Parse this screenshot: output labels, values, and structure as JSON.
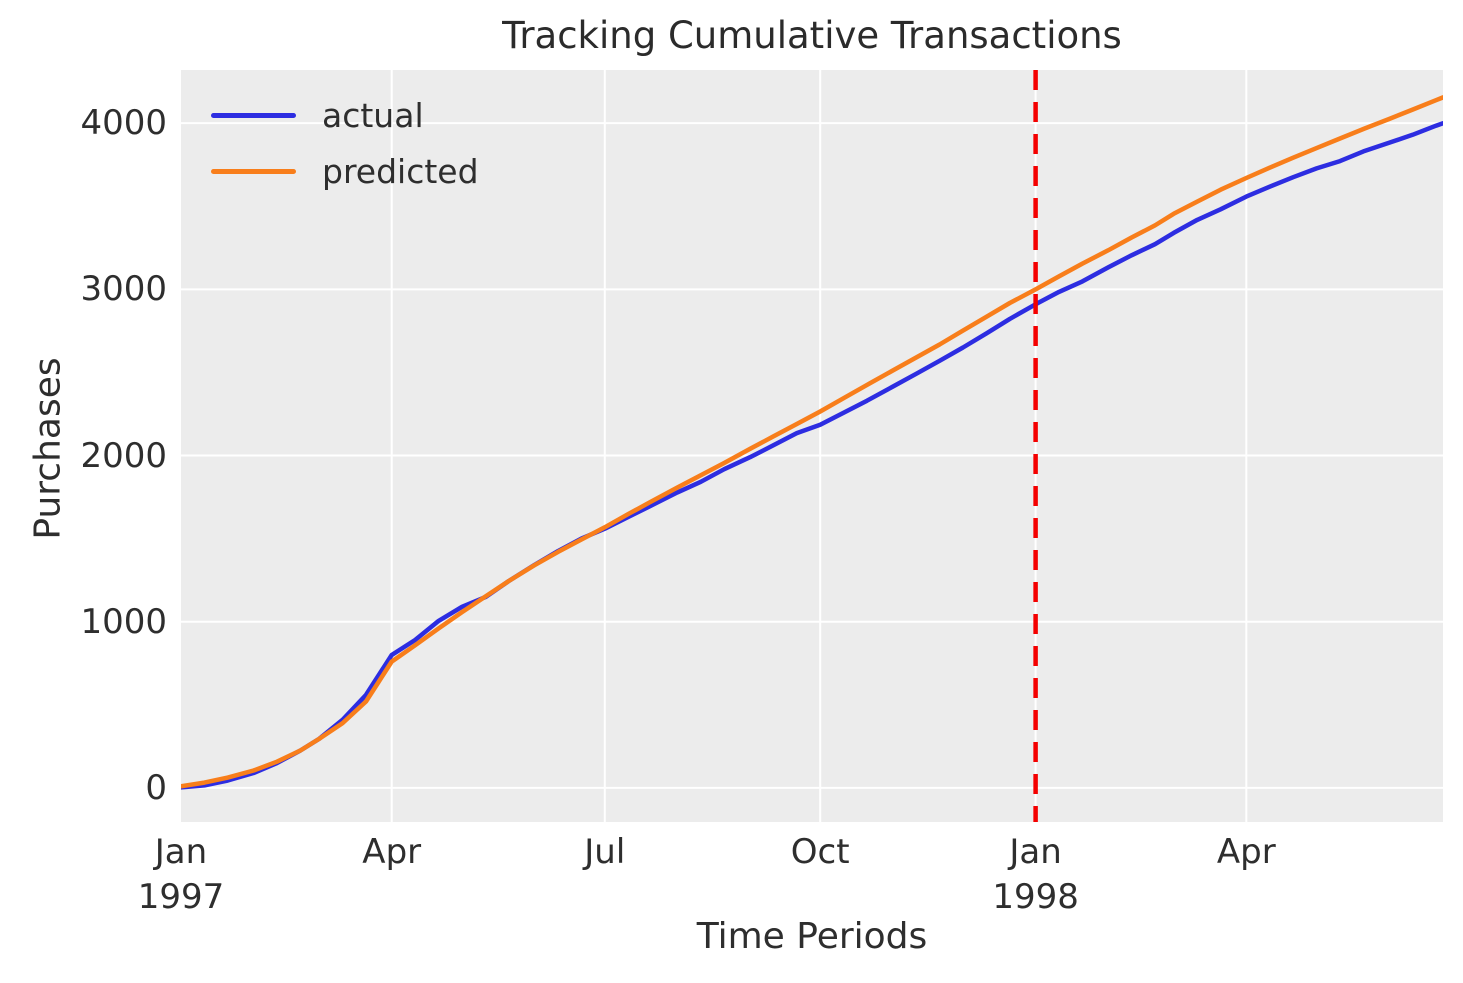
{
  "title": "Tracking Cumulative Transactions",
  "axes": {
    "x_label": "Time Periods",
    "y_label": "Purchases"
  },
  "colors": {
    "actual": "#2d2de1",
    "predicted": "#f87e1b",
    "cutoff_line": "#f40000",
    "plot_background": "#ececec",
    "gridline": "#ffffff",
    "text": "#2e2e2e"
  },
  "chart_data": {
    "type": "line",
    "title": "Tracking Cumulative Transactions",
    "xlabel": "Time Periods",
    "ylabel": "Purchases",
    "grid": true,
    "legend_position": "upper left",
    "x_range": [
      "1997-01-01",
      "1998-06-24"
    ],
    "ylim": [
      -205,
      4320
    ],
    "y_ticks": [
      0,
      1000,
      2000,
      3000,
      4000
    ],
    "x_ticks": [
      {
        "date": "1997-01-01",
        "label": "Jan",
        "year": "1997"
      },
      {
        "date": "1997-04-01",
        "label": "Apr",
        "year": ""
      },
      {
        "date": "1997-07-01",
        "label": "Jul",
        "year": ""
      },
      {
        "date": "1997-10-01",
        "label": "Oct",
        "year": ""
      },
      {
        "date": "1998-01-01",
        "label": "Jan",
        "year": "1998"
      },
      {
        "date": "1998-04-01",
        "label": "Apr",
        "year": ""
      }
    ],
    "vline": {
      "date": "1998-01-01",
      "color": "#f40000",
      "style": "dashed"
    },
    "x": [
      "1997-01-01",
      "1997-01-11",
      "1997-01-21",
      "1997-02-01",
      "1997-02-11",
      "1997-02-21",
      "1997-03-01",
      "1997-03-11",
      "1997-03-21",
      "1997-04-01",
      "1997-04-11",
      "1997-04-21",
      "1997-05-01",
      "1997-05-11",
      "1997-05-21",
      "1997-06-01",
      "1997-06-11",
      "1997-06-21",
      "1997-07-01",
      "1997-07-11",
      "1997-07-21",
      "1997-08-01",
      "1997-08-11",
      "1997-08-21",
      "1997-09-01",
      "1997-09-11",
      "1997-09-21",
      "1997-10-01",
      "1997-10-11",
      "1997-10-21",
      "1997-11-01",
      "1997-11-11",
      "1997-11-21",
      "1997-12-01",
      "1997-12-11",
      "1997-12-21",
      "1998-01-01",
      "1998-01-11",
      "1998-01-21",
      "1998-02-01",
      "1998-02-11",
      "1998-02-21",
      "1998-03-01",
      "1998-03-11",
      "1998-03-21",
      "1998-04-01",
      "1998-04-11",
      "1998-04-21",
      "1998-05-01",
      "1998-05-11",
      "1998-05-21",
      "1998-06-01",
      "1998-06-11",
      "1998-06-21",
      "1998-06-24"
    ],
    "series": [
      {
        "name": "actual",
        "color": "#2d2de1",
        "values": [
          3,
          15,
          45,
          90,
          150,
          225,
          295,
          410,
          560,
          800,
          890,
          1005,
          1090,
          1148,
          1245,
          1342,
          1425,
          1500,
          1560,
          1630,
          1700,
          1778,
          1842,
          1918,
          1990,
          2062,
          2135,
          2185,
          2258,
          2330,
          2415,
          2492,
          2570,
          2650,
          2735,
          2822,
          2910,
          2985,
          3048,
          3132,
          3205,
          3272,
          3340,
          3418,
          3482,
          3558,
          3618,
          3675,
          3728,
          3772,
          3830,
          3882,
          3930,
          3985,
          4000
        ]
      },
      {
        "name": "predicted",
        "color": "#f87e1b",
        "values": [
          10,
          32,
          62,
          105,
          158,
          225,
          295,
          390,
          520,
          760,
          858,
          960,
          1058,
          1152,
          1245,
          1340,
          1420,
          1495,
          1568,
          1648,
          1725,
          1808,
          1882,
          1955,
          2040,
          2115,
          2190,
          2265,
          2345,
          2425,
          2512,
          2590,
          2668,
          2752,
          2835,
          2918,
          3000,
          3078,
          3155,
          3235,
          3312,
          3385,
          3455,
          3528,
          3600,
          3670,
          3732,
          3792,
          3850,
          3908,
          3965,
          4025,
          4082,
          4138,
          4155
        ]
      }
    ]
  }
}
